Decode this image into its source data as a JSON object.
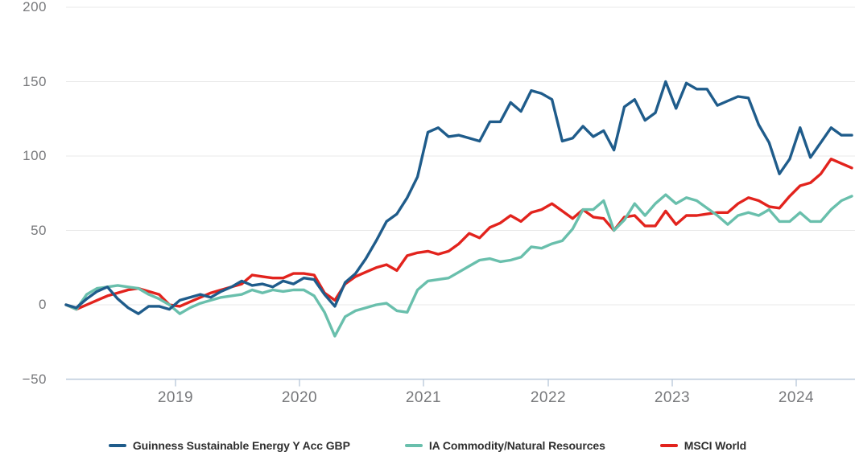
{
  "chart_data": {
    "type": "line",
    "title": "",
    "x_axis": {
      "tick_labels": [
        "2019",
        "2020",
        "2021",
        "2022",
        "2023",
        "2024"
      ]
    },
    "y_axis": {
      "ticks": [
        200,
        150,
        100,
        50,
        0,
        -50
      ],
      "tick_labels": [
        "200",
        "150",
        "100",
        "50",
        "0",
        "−50"
      ],
      "range": [
        -50,
        200
      ]
    },
    "x_interval": "monthly",
    "x_range": [
      "2018-02",
      "2024-06"
    ],
    "grid": "horizontal",
    "legend_position": "bottom",
    "style": {
      "background": "#ffffff",
      "grid_color": "#e8e8e8",
      "axis_color": "#bccadb",
      "tick_label_color": "#77787b",
      "legend_text_color": "#2f2f2f"
    },
    "series": [
      {
        "name": "Guinness Sustainable Energy Y Acc GBP",
        "key": "guinness-sustainable-energy",
        "color": "#1f5c8b",
        "values": [
          0,
          -2,
          4,
          9,
          12,
          4,
          -2,
          -6,
          -1,
          -1,
          -3,
          3,
          5,
          7,
          5,
          9,
          12,
          16,
          13,
          14,
          12,
          16,
          14,
          18,
          17,
          7,
          -1,
          15,
          21,
          31,
          43,
          56,
          61,
          72,
          86,
          116,
          119,
          113,
          114,
          112,
          110,
          123,
          123,
          136,
          130,
          144,
          142,
          138,
          110,
          112,
          120,
          113,
          117,
          104,
          133,
          138,
          124,
          129,
          150,
          132,
          149,
          145,
          145,
          134,
          137,
          140,
          139,
          121,
          109,
          88,
          98,
          119,
          99,
          109,
          119,
          114,
          114
        ]
      },
      {
        "name": "IA Commodity/Natural Resources",
        "key": "ia-commodity-natural-resources",
        "color": "#69bfac",
        "values": [
          0,
          -3,
          7,
          11,
          12,
          13,
          12,
          11,
          7,
          4,
          0,
          -6,
          -2,
          1,
          3,
          5,
          6,
          7,
          10,
          8,
          10,
          9,
          10,
          10,
          6,
          -5,
          -21,
          -8,
          -4,
          -2,
          0,
          1,
          -4,
          -5,
          10,
          16,
          17,
          18,
          22,
          26,
          30,
          31,
          29,
          30,
          32,
          39,
          38,
          41,
          43,
          51,
          64,
          64,
          70,
          50,
          57,
          68,
          60,
          68,
          74,
          68,
          72,
          70,
          65,
          60,
          54,
          60,
          62,
          60,
          64,
          56,
          56,
          62,
          56,
          56,
          64,
          70,
          73
        ]
      },
      {
        "name": "MSCI World",
        "key": "msci-world",
        "color": "#e2231d",
        "values": [
          0,
          -3,
          0,
          3,
          6,
          8,
          10,
          11,
          9,
          7,
          0,
          -1,
          2,
          5,
          8,
          10,
          12,
          14,
          20,
          19,
          18,
          18,
          21,
          21,
          20,
          8,
          3,
          14,
          19,
          22,
          25,
          27,
          23,
          33,
          35,
          36,
          34,
          36,
          41,
          48,
          45,
          52,
          55,
          60,
          56,
          62,
          64,
          68,
          63,
          58,
          64,
          59,
          58,
          50,
          59,
          60,
          53,
          53,
          63,
          54,
          60,
          60,
          61,
          62,
          62,
          68,
          72,
          70,
          66,
          65,
          73,
          80,
          82,
          88,
          98,
          95,
          92
        ]
      }
    ]
  },
  "legend": {
    "items": [
      {
        "label": "Guinness Sustainable Energy Y Acc GBP",
        "color": "#1f5c8b"
      },
      {
        "label": "IA Commodity/Natural Resources",
        "color": "#69bfac"
      },
      {
        "label": "MSCI World",
        "color": "#e2231d"
      }
    ]
  }
}
